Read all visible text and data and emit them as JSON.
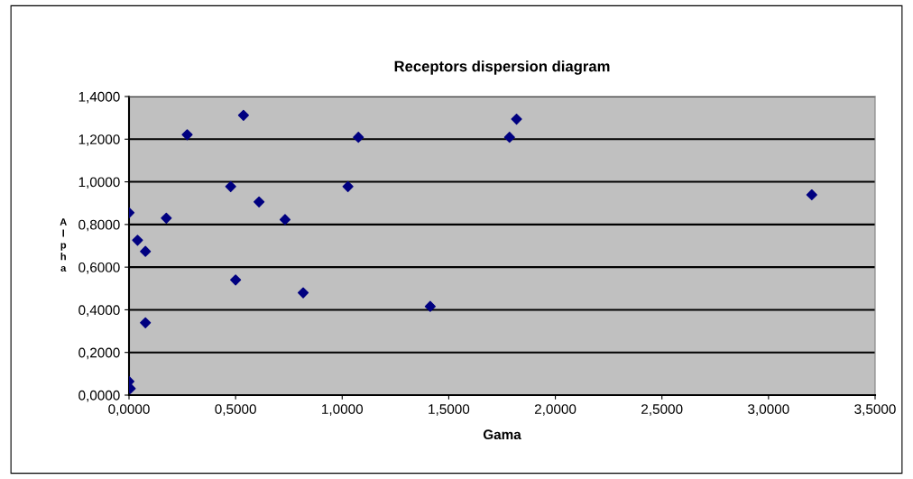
{
  "chart_data": {
    "type": "scatter",
    "title": "Receptors dispersion diagram",
    "xlabel": "Gama",
    "ylabel": "Alpha",
    "x": [
      0.0,
      0.04,
      0.077,
      0.077,
      0.0,
      0.006,
      0.175,
      0.273,
      0.477,
      0.5,
      0.537,
      0.61,
      0.732,
      0.817,
      1.027,
      1.076,
      1.413,
      1.785,
      1.818,
      3.203
    ],
    "series": [
      {
        "color": "#000080",
        "values": [
          0.855,
          0.726,
          0.674,
          0.339,
          0.064,
          0.031,
          0.83,
          1.221,
          0.978,
          0.54,
          1.312,
          0.906,
          0.823,
          0.48,
          0.978,
          1.209,
          0.416,
          1.209,
          1.294,
          0.939
        ]
      }
    ],
    "xlim": [
      0,
      3.5
    ],
    "ylim": [
      0,
      1.4
    ],
    "xticks": [
      {
        "value": 0,
        "label": "0,0000"
      },
      {
        "value": 0.5,
        "label": "0,5000"
      },
      {
        "value": 1,
        "label": "1,0000"
      },
      {
        "value": 1.5,
        "label": "1,5000"
      },
      {
        "value": 2,
        "label": "2,0000"
      },
      {
        "value": 2.5,
        "label": "2,5000"
      },
      {
        "value": 3,
        "label": "3,0000"
      },
      {
        "value": 3.5,
        "label": "3,5000"
      }
    ],
    "yticks": [
      {
        "value": 0,
        "label": "0,0000"
      },
      {
        "value": 0.2,
        "label": "0,2000"
      },
      {
        "value": 0.4,
        "label": "0,4000"
      },
      {
        "value": 0.6,
        "label": "0,6000"
      },
      {
        "value": 0.8,
        "label": "0,8000"
      },
      {
        "value": 1,
        "label": "1,0000"
      },
      {
        "value": 1.2,
        "label": "1,2000"
      },
      {
        "value": 1.4,
        "label": "1,4000"
      }
    ],
    "grid": "y",
    "marker": "diamond",
    "legend": false
  }
}
